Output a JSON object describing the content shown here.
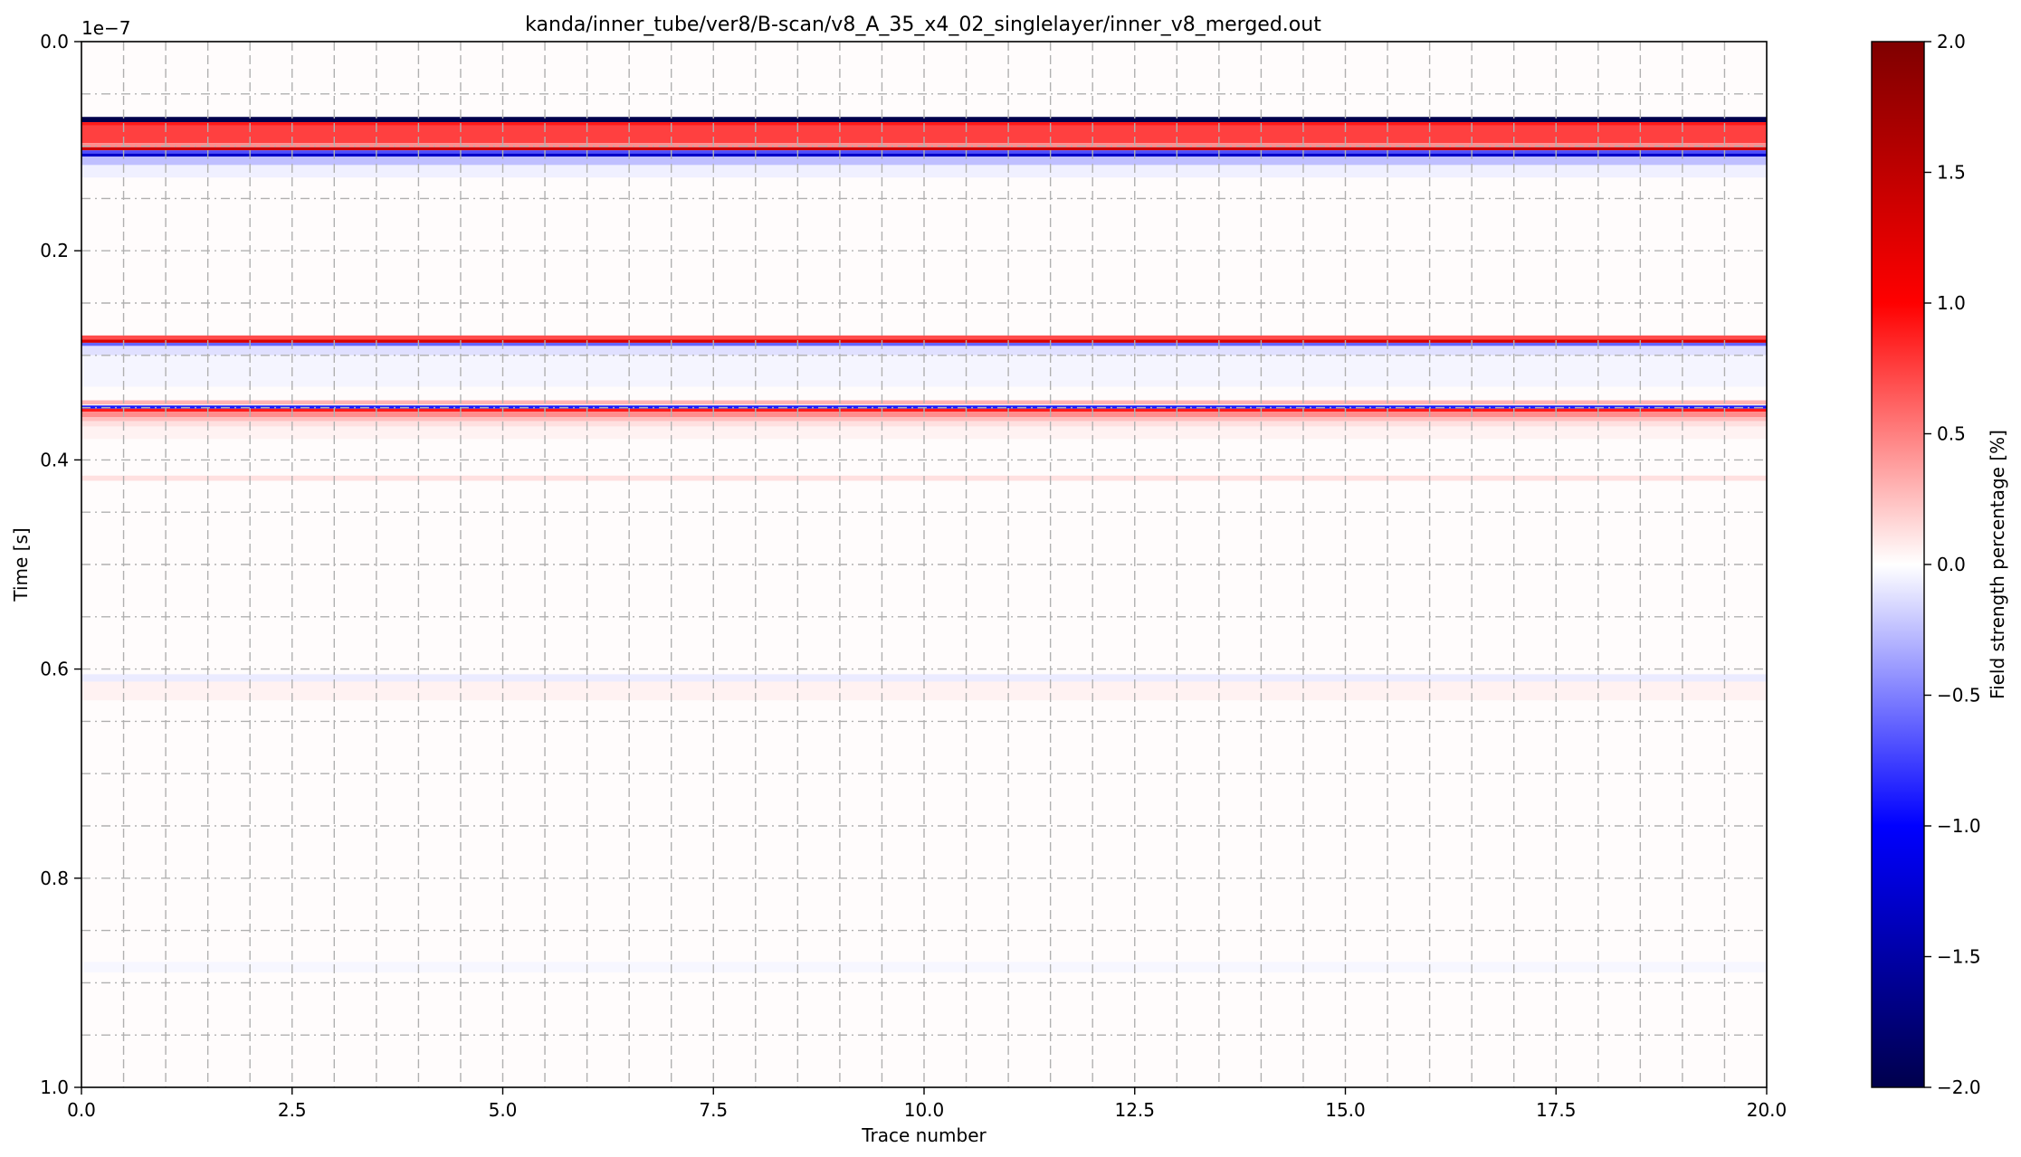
{
  "chart_data": {
    "type": "heatmap",
    "title": "kanda/inner_tube/ver8/B-scan/v8_A_35_x4_02_singlelayer/inner_v8_merged.out",
    "xlabel": "Trace number",
    "ylabel": "Time [s]",
    "y_offset_label": "1e−7",
    "xlim": [
      0.0,
      20.0
    ],
    "ylim": [
      1.0,
      0.0
    ],
    "y_scale_factor": 1e-07,
    "x_ticks": [
      "0.0",
      "2.5",
      "5.0",
      "7.5",
      "10.0",
      "12.5",
      "15.0",
      "17.5",
      "20.0"
    ],
    "y_ticks": [
      "0.0",
      "0.2",
      "0.4",
      "0.6",
      "0.8",
      "1.0"
    ],
    "grid": true,
    "colormap": "seismic",
    "colorbar": {
      "label": "Field strength percentage [%]",
      "range": [
        -2.0,
        2.0
      ],
      "ticks": [
        "2.0",
        "1.5",
        "1.0",
        "0.5",
        "0.0",
        "−0.5",
        "−1.0",
        "−1.5",
        "−2.0"
      ],
      "colors": [
        "#00004c",
        "#0000ff",
        "#ffffff",
        "#ff0000",
        "#7f0000"
      ]
    },
    "bands": [
      {
        "t0": 0.072,
        "t1": 0.077,
        "value": -2.0
      },
      {
        "t0": 0.077,
        "t1": 0.08,
        "value": 0.9
      },
      {
        "t0": 0.08,
        "t1": 0.097,
        "value": 0.75
      },
      {
        "t0": 0.097,
        "t1": 0.101,
        "value": 0.45
      },
      {
        "t0": 0.101,
        "t1": 0.104,
        "value": 1.4
      },
      {
        "t0": 0.104,
        "t1": 0.107,
        "value": -0.7
      },
      {
        "t0": 0.107,
        "t1": 0.11,
        "value": -1.3
      },
      {
        "t0": 0.11,
        "t1": 0.118,
        "value": -0.25
      },
      {
        "t0": 0.118,
        "t1": 0.13,
        "value": -0.06
      },
      {
        "t0": 0.281,
        "t1": 0.285,
        "value": 0.7
      },
      {
        "t0": 0.285,
        "t1": 0.288,
        "value": 1.3
      },
      {
        "t0": 0.288,
        "t1": 0.291,
        "value": -0.6
      },
      {
        "t0": 0.291,
        "t1": 0.3,
        "value": -0.12
      },
      {
        "t0": 0.3,
        "t1": 0.33,
        "value": -0.04
      },
      {
        "t0": 0.343,
        "t1": 0.347,
        "value": 0.3
      },
      {
        "t0": 0.348,
        "t1": 0.351,
        "value": -0.9
      },
      {
        "t0": 0.351,
        "t1": 0.354,
        "value": 0.9
      },
      {
        "t0": 0.354,
        "t1": 0.359,
        "value": 0.45
      },
      {
        "t0": 0.359,
        "t1": 0.363,
        "value": 0.25
      },
      {
        "t0": 0.363,
        "t1": 0.368,
        "value": 0.12
      },
      {
        "t0": 0.368,
        "t1": 0.38,
        "value": 0.05
      },
      {
        "t0": 0.415,
        "t1": 0.42,
        "value": 0.12
      },
      {
        "t0": 0.605,
        "t1": 0.612,
        "value": -0.08
      },
      {
        "t0": 0.612,
        "t1": 0.63,
        "value": 0.05
      },
      {
        "t0": 0.88,
        "t1": 0.89,
        "value": -0.03
      }
    ],
    "background_value": 0.01
  }
}
